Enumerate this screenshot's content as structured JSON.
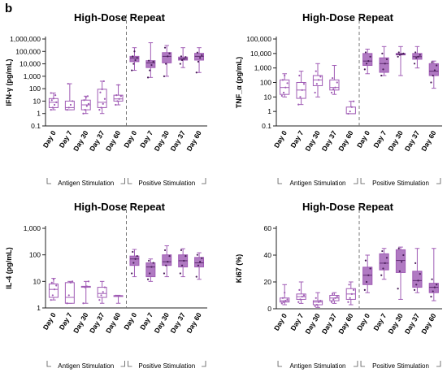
{
  "panel_letter": "b",
  "colors": {
    "accent": "#a05cb5",
    "accent_fill": "#b07ac2",
    "axis": "#222222",
    "divider": "#777777"
  },
  "chart_data": [
    {
      "type": "box",
      "title": "High-Dose Repeat",
      "ylabel": "IFN-γ (pg/mL)",
      "scale": "log",
      "ylim": [
        0.1,
        1000000
      ],
      "yticks": [
        "0.1",
        "1",
        "10",
        "100",
        "1,000",
        "10,000",
        "100,000",
        "1,000,000"
      ],
      "categories": [
        "Day 0",
        "Day 7",
        "Day 30",
        "Day 37",
        "Day 60",
        "Day 0",
        "Day 7",
        "Day 30",
        "Day 37",
        "Day 60"
      ],
      "groups": [
        "Antigen Stimulation",
        "Positive Stimulation"
      ],
      "boxes": [
        {
          "min": 2,
          "q1": 3,
          "median": 8,
          "q3": 16,
          "max": 45,
          "points": [
            2,
            3,
            5,
            8,
            12,
            16,
            30,
            45
          ],
          "filled": false
        },
        {
          "min": 2,
          "q1": 2,
          "median": 3,
          "q3": 10,
          "max": 250,
          "points": [
            2,
            3,
            5,
            10,
            250
          ],
          "filled": false
        },
        {
          "min": 1,
          "q1": 2,
          "median": 5,
          "q3": 12,
          "max": 25,
          "points": [
            1,
            2,
            4,
            6,
            12,
            20,
            25
          ],
          "filled": false
        },
        {
          "min": 1,
          "q1": 3,
          "median": 8,
          "q3": 90,
          "max": 400,
          "points": [
            2,
            3,
            6,
            15,
            50,
            90,
            400
          ],
          "filled": false
        },
        {
          "min": 5,
          "q1": 10,
          "median": 15,
          "q3": 30,
          "max": 200,
          "points": [
            5,
            10,
            15,
            25,
            30,
            200
          ],
          "filled": false
        },
        {
          "min": 3000,
          "q1": 15000,
          "median": 30000,
          "q3": 40000,
          "max": 200000,
          "points": [
            3000,
            10000,
            20000,
            30000,
            40000,
            100000
          ],
          "filled": true
        },
        {
          "min": 800,
          "q1": 5000,
          "median": 12000,
          "q3": 18000,
          "max": 500000,
          "points": [
            800,
            3000,
            8000,
            15000,
            18000
          ],
          "filled": true
        },
        {
          "min": 1000,
          "q1": 12000,
          "median": 40000,
          "q3": 80000,
          "max": 300000,
          "points": [
            1000,
            10000,
            40000,
            70000,
            200000
          ],
          "filled": true
        },
        {
          "min": 5000,
          "q1": 20000,
          "median": 25000,
          "q3": 35000,
          "max": 200000,
          "points": [
            10000,
            20000,
            25000,
            35000,
            40000
          ],
          "filled": true
        },
        {
          "min": 2000,
          "q1": 20000,
          "median": 40000,
          "q3": 70000,
          "max": 200000,
          "points": [
            2000,
            15000,
            30000,
            50000,
            80000
          ],
          "filled": true
        }
      ]
    },
    {
      "type": "box",
      "title": "High-Dose Repeat",
      "ylabel": "TNF_α (pg/mL)",
      "scale": "log",
      "ylim": [
        0.1,
        100000
      ],
      "yticks": [
        "0.1",
        "1",
        "10",
        "100",
        "1,000",
        "10,000",
        "100,000"
      ],
      "categories": [
        "Day 0",
        "Day 7",
        "Day 30",
        "Day 37",
        "Day 60",
        "Day 0",
        "Day 7",
        "Day 30",
        "Day 37",
        "Day 60"
      ],
      "groups": [
        "Antigen Stimulation",
        "Positive Stimulation"
      ],
      "boxes": [
        {
          "min": 10,
          "q1": 15,
          "median": 45,
          "q3": 150,
          "max": 400,
          "points": [
            12,
            20,
            45,
            90,
            150,
            300
          ],
          "filled": false
        },
        {
          "min": 3,
          "q1": 8,
          "median": 30,
          "q3": 100,
          "max": 600,
          "points": [
            3,
            10,
            30,
            80,
            300
          ],
          "filled": false
        },
        {
          "min": 10,
          "q1": 60,
          "median": 150,
          "q3": 300,
          "max": 2000,
          "points": [
            20,
            80,
            150,
            250,
            600
          ],
          "filled": false
        },
        {
          "min": 15,
          "q1": 30,
          "median": 45,
          "q3": 150,
          "max": 1500,
          "points": [
            20,
            35,
            45,
            100,
            200
          ],
          "filled": false
        },
        {
          "min": 0.7,
          "q1": 0.7,
          "median": 0.7,
          "q3": 2,
          "max": 5,
          "points": [
            0.7,
            1,
            2,
            5
          ],
          "filled": false
        },
        {
          "min": 400,
          "q1": 1500,
          "median": 3000,
          "q3": 10000,
          "max": 20000,
          "points": [
            800,
            2000,
            3000,
            6000,
            12000
          ],
          "filled": true
        },
        {
          "min": 300,
          "q1": 500,
          "median": 2000,
          "q3": 5000,
          "max": 30000,
          "points": [
            300,
            800,
            2000,
            4000,
            10000
          ],
          "filled": true
        },
        {
          "min": 300,
          "q1": 8000,
          "median": 9000,
          "q3": 10000,
          "max": 30000,
          "points": [
            6000,
            8000,
            9000,
            10000,
            12000
          ],
          "filled": true
        },
        {
          "min": 1000,
          "q1": 4000,
          "median": 6000,
          "q3": 10000,
          "max": 30000,
          "points": [
            2000,
            5000,
            6000,
            8000,
            12000
          ],
          "filled": true
        },
        {
          "min": 40,
          "q1": 300,
          "median": 600,
          "q3": 2000,
          "max": 3000,
          "points": [
            100,
            300,
            700,
            1500,
            2500
          ],
          "filled": true
        }
      ]
    },
    {
      "type": "box",
      "title": "High-Dose Repeat",
      "ylabel": "IL-4 (pg/mL)",
      "scale": "log",
      "ylim": [
        1,
        1000
      ],
      "yticks": [
        "1",
        "10",
        "100",
        "1,000"
      ],
      "categories": [
        "Day 0",
        "Day 7",
        "Day 30",
        "Day 37",
        "Day 60",
        "Day 0",
        "Day 7",
        "Day 30",
        "Day 37",
        "Day 60"
      ],
      "groups": [
        "Antigen Stimulation",
        "Positive Stimulation"
      ],
      "boxes": [
        {
          "min": 2,
          "q1": 2.5,
          "median": 5,
          "q3": 8,
          "max": 13,
          "points": [
            2,
            3,
            5,
            7,
            9,
            12
          ],
          "filled": false
        },
        {
          "min": 1.5,
          "q1": 1.5,
          "median": 2.5,
          "q3": 9,
          "max": 10,
          "points": [
            1.5,
            3,
            9,
            10
          ],
          "filled": false
        },
        {
          "min": 1.5,
          "q1": 6,
          "median": 6.5,
          "q3": 6.5,
          "max": 10,
          "points": [
            1.5,
            6,
            6.5,
            10
          ],
          "filled": false
        },
        {
          "min": 1.5,
          "q1": 2.5,
          "median": 3.5,
          "q3": 6,
          "max": 10,
          "points": [
            2,
            3,
            4,
            6
          ],
          "filled": false
        },
        {
          "min": 1.5,
          "q1": 2.8,
          "median": 2.9,
          "q3": 2.9,
          "max": 3,
          "points": [
            2.9
          ],
          "filled": false
        },
        {
          "min": 15,
          "q1": 40,
          "median": 70,
          "q3": 90,
          "max": 160,
          "points": [
            20,
            50,
            70,
            90,
            130
          ],
          "filled": true
        },
        {
          "min": 10,
          "q1": 15,
          "median": 35,
          "q3": 50,
          "max": 70,
          "points": [
            12,
            20,
            35,
            50,
            60
          ],
          "filled": true
        },
        {
          "min": 15,
          "q1": 40,
          "median": 55,
          "q3": 100,
          "max": 220,
          "points": [
            20,
            40,
            55,
            90,
            150
          ],
          "filled": true
        },
        {
          "min": 15,
          "q1": 35,
          "median": 60,
          "q3": 100,
          "max": 170,
          "points": [
            20,
            40,
            60,
            90,
            150
          ],
          "filled": true
        },
        {
          "min": 12,
          "q1": 35,
          "median": 50,
          "q3": 80,
          "max": 120,
          "points": [
            15,
            40,
            55,
            75,
            100
          ],
          "filled": true
        }
      ]
    },
    {
      "type": "box",
      "title": "High-Dose Repeat",
      "ylabel": "Ki67 (%)",
      "scale": "linear",
      "ylim": [
        0,
        60
      ],
      "yticks": [
        "0",
        "20",
        "40",
        "60"
      ],
      "categories": [
        "Day 0",
        "Day 7",
        "Day 30",
        "Day 37",
        "Day 60",
        "Day 0",
        "Day 7",
        "Day 30",
        "Day 37",
        "Day 60"
      ],
      "groups": [
        "Antigen Stimulation",
        "Positive Stimulation"
      ],
      "boxes": [
        {
          "min": 3,
          "q1": 5,
          "median": 6,
          "q3": 8,
          "max": 18,
          "points": [
            4,
            5,
            6,
            7,
            8,
            12
          ],
          "filled": false
        },
        {
          "min": 4,
          "q1": 7,
          "median": 9,
          "q3": 11,
          "max": 20,
          "points": [
            5,
            7,
            9,
            10,
            14
          ],
          "filled": false
        },
        {
          "min": 1,
          "q1": 3,
          "median": 5,
          "q3": 6,
          "max": 12,
          "points": [
            2,
            3,
            5,
            6,
            8
          ],
          "filled": false
        },
        {
          "min": 4,
          "q1": 6,
          "median": 8,
          "q3": 10,
          "max": 12,
          "points": [
            5,
            7,
            8,
            9,
            11
          ],
          "filled": false
        },
        {
          "min": 3,
          "q1": 7,
          "median": 11,
          "q3": 15,
          "max": 20,
          "points": [
            5,
            8,
            11,
            14,
            18
          ],
          "filled": false
        },
        {
          "min": 12,
          "q1": 18,
          "median": 25,
          "q3": 31,
          "max": 40,
          "points": [
            14,
            20,
            25,
            30,
            36
          ],
          "filled": true
        },
        {
          "min": 22,
          "q1": 29,
          "median": 34,
          "q3": 41,
          "max": 45,
          "points": [
            25,
            30,
            34,
            38,
            43
          ],
          "filled": true
        },
        {
          "min": 7,
          "q1": 27,
          "median": 36,
          "q3": 44,
          "max": 46,
          "points": [
            15,
            28,
            35,
            40,
            45
          ],
          "filled": true
        },
        {
          "min": 12,
          "q1": 16,
          "median": 21,
          "q3": 28,
          "max": 45,
          "points": [
            14,
            18,
            21,
            26,
            34
          ],
          "filled": true
        },
        {
          "min": 6,
          "q1": 12,
          "median": 16,
          "q3": 19,
          "max": 45,
          "points": [
            9,
            13,
            16,
            18,
            22
          ],
          "filled": true
        }
      ]
    }
  ]
}
